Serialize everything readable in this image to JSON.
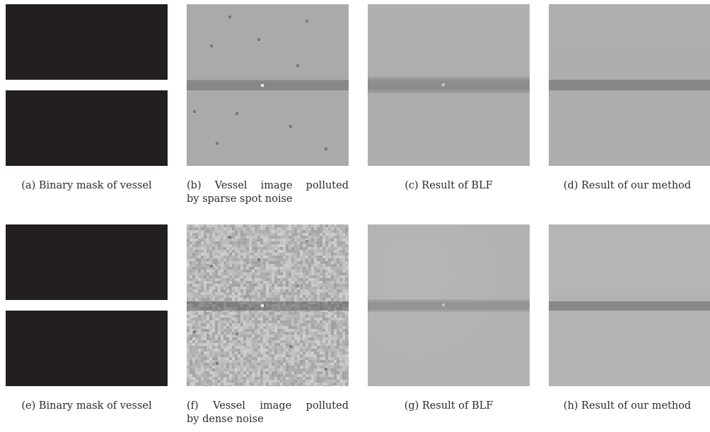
{
  "figure": {
    "rows": [
      {
        "panels": [
          {
            "id": "a",
            "type": "mask",
            "caption": "(a)  Binary mask of vessel"
          },
          {
            "id": "b",
            "type": "sparse",
            "caption_line1": "(b)  Vessel image polluted",
            "caption_line2": "by sparse spot noise"
          },
          {
            "id": "c",
            "type": "blf-sparse",
            "caption": "(c)  Result of BLF"
          },
          {
            "id": "d",
            "type": "ours-sparse",
            "caption": "(d)  Result of our method"
          }
        ]
      },
      {
        "panels": [
          {
            "id": "e",
            "type": "mask",
            "caption": "(e)  Binary mask of vessel"
          },
          {
            "id": "f",
            "type": "dense",
            "caption_line1": "(f)  Vessel image polluted",
            "caption_line2": "by dense noise"
          },
          {
            "id": "g",
            "type": "blf-dense",
            "caption": "(g)  Result of BLF"
          },
          {
            "id": "h",
            "type": "ours-dense",
            "caption": "(h)  Result of our method"
          }
        ]
      }
    ]
  },
  "colors": {
    "mask_dark": "#231f20",
    "mask_vessel": "#ffffff",
    "background_gray": "#aaaaaa",
    "vessel_gray": "#858585",
    "spot_gray": "#7a7a7a",
    "bright_spot": "#e6e6e6",
    "filtered_bg": "#adadad",
    "filtered_vessel": "#8a8a8a"
  }
}
